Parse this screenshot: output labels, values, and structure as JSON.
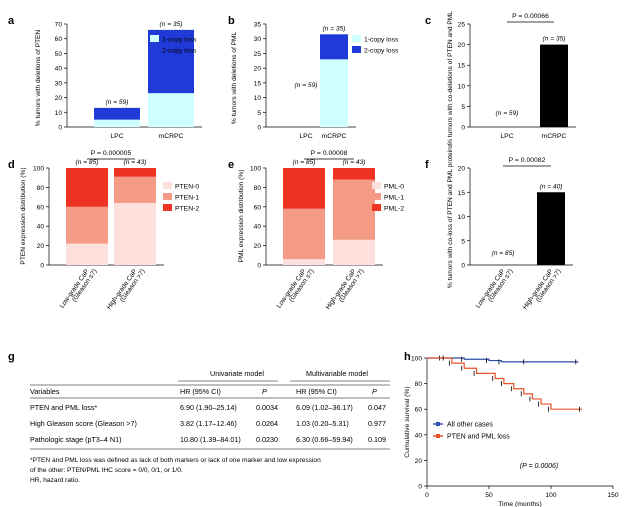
{
  "panels": [
    {
      "letter": "a"
    },
    {
      "letter": "b"
    },
    {
      "letter": "c"
    },
    {
      "letter": "d"
    },
    {
      "letter": "e"
    },
    {
      "letter": "f"
    },
    {
      "letter": "g"
    },
    {
      "letter": "h"
    }
  ],
  "chart_data": [
    {
      "id": "a",
      "type": "bar",
      "stacked": true,
      "categories": [
        "LPC",
        "mCRPC"
      ],
      "ylabel": "% tumors with deletions of PTEN",
      "ylim": [
        0,
        70
      ],
      "yticks": [
        0,
        10,
        20,
        30,
        40,
        50,
        60,
        70
      ],
      "series": [
        {
          "name": "1-copy loss",
          "color": "#cfffff",
          "values": [
            5,
            23
          ]
        },
        {
          "name": "2-copy loss",
          "color": "#1f3ad6",
          "values": [
            8,
            43
          ]
        }
      ],
      "ns": [
        "(n = 59)",
        "(n = 35)"
      ],
      "legend": "top-right"
    },
    {
      "id": "b",
      "type": "bar",
      "stacked": true,
      "categories": [
        "LPC",
        "mCRPC"
      ],
      "ylabel": "% tumors with deletions of PML",
      "ylim": [
        0,
        35
      ],
      "yticks": [
        0,
        5,
        10,
        15,
        20,
        25,
        30,
        35
      ],
      "series": [
        {
          "name": "1-copy loss",
          "color": "#cfffff",
          "values": [
            0,
            23
          ]
        },
        {
          "name": "2-copy loss",
          "color": "#1f3ad6",
          "values": [
            0,
            8.5
          ]
        }
      ],
      "ns": [
        "(n = 59)",
        "(n = 35)"
      ],
      "legend": "top-right"
    },
    {
      "id": "c",
      "type": "bar",
      "categories": [
        "LPC",
        "mCRPC"
      ],
      "ylabel": "% tumors with co-deletions of PTEN and PML",
      "ylim": [
        0,
        25
      ],
      "yticks": [
        0,
        5,
        10,
        15,
        20,
        25
      ],
      "values": [
        0,
        20
      ],
      "color": "#000000",
      "ns": [
        "(n = 59)",
        "(n = 35)"
      ],
      "pvalue": "P = 0.00066"
    },
    {
      "id": "d",
      "type": "bar",
      "stacked": true,
      "categories": [
        "Low-grade CaP (Gleason ≤7)",
        "High-grade CaP (Gleason >7)"
      ],
      "ylabel": "PTEN expression distribution (%)",
      "ylim": [
        0,
        100
      ],
      "yticks": [
        0,
        20,
        40,
        60,
        80,
        100
      ],
      "series": [
        {
          "name": "PTEN-0",
          "color": "#fde0dc",
          "values": [
            22,
            64
          ]
        },
        {
          "name": "PTEN-1",
          "color": "#f59a85",
          "values": [
            38,
            27
          ]
        },
        {
          "name": "PTEN-2",
          "color": "#ee3322",
          "values": [
            40,
            9
          ]
        }
      ],
      "ns": [
        "(n = 85)",
        "(n = 43)"
      ],
      "pvalue": "P = 0.000005",
      "legend": "top-right"
    },
    {
      "id": "e",
      "type": "bar",
      "stacked": true,
      "categories": [
        "Low-grade CaP (Gleason ≤7)",
        "High-grade CaP (Gleason >7)"
      ],
      "ylabel": "PML expression distribution (%)",
      "ylim": [
        0,
        100
      ],
      "yticks": [
        0,
        20,
        40,
        60,
        80,
        100
      ],
      "series": [
        {
          "name": "PML-0",
          "color": "#fde0dc",
          "values": [
            6,
            26
          ]
        },
        {
          "name": "PML-1",
          "color": "#f59a85",
          "values": [
            52,
            62
          ]
        },
        {
          "name": "PML-2",
          "color": "#ee3322",
          "values": [
            42,
            12
          ]
        }
      ],
      "ns": [
        "(n = 85)",
        "(n = 43)"
      ],
      "pvalue": "P = 0.00008",
      "legend": "top-right"
    },
    {
      "id": "f",
      "type": "bar",
      "categories": [
        "Low-grade CaP (Gleason ≤7)",
        "High-grade CaP (Gleason >7)"
      ],
      "ylabel": "% tumors with co-loss of PTEN and PML proteins",
      "ylim": [
        0,
        20
      ],
      "yticks": [
        0,
        5,
        10,
        15,
        20
      ],
      "values": [
        0,
        15
      ],
      "color": "#000000",
      "ns": [
        "(n = 85)",
        "(n = 40)"
      ],
      "pvalue": "P = 0.00082"
    },
    {
      "id": "h",
      "type": "line",
      "subtype": "kaplan-meier",
      "xlabel": "Time (months)",
      "ylabel": "Cumulative survival (%)",
      "xlim": [
        0,
        150
      ],
      "ylim": [
        0,
        100
      ],
      "xticks": [
        0,
        50,
        100,
        150
      ],
      "yticks": [
        0,
        20,
        40,
        60,
        80,
        100
      ],
      "series": [
        {
          "name": "All other cases",
          "color": "#2a4fa8",
          "x": [
            0,
            12,
            30,
            50,
            60,
            80,
            122
          ],
          "y": [
            100,
            100,
            99,
            98,
            97,
            97,
            97
          ]
        },
        {
          "name": "PTEN and PML loss",
          "color": "#e8542a",
          "x": [
            0,
            15,
            20,
            30,
            40,
            55,
            62,
            70,
            78,
            85,
            92,
            100,
            125
          ],
          "y": [
            100,
            100,
            96,
            92,
            88,
            84,
            80,
            76,
            72,
            68,
            64,
            60,
            60
          ]
        }
      ],
      "annotation": "(P = 0.0006)",
      "legend": "bottom-left"
    }
  ],
  "table": {
    "group_univariate": "Univariate model",
    "group_multivariable": "Multivariable model",
    "col_variables": "Variables",
    "col_hr1": "HR (95% CI)",
    "col_p1": "P",
    "col_hr2": "HR (95% CI)",
    "col_p2": "P",
    "rows": [
      {
        "variable": "PTEN and PML loss*",
        "hr1": "6.90 (1.90–25.14)",
        "p1": "0.0034",
        "hr2": "6.09 (1.02–36.17)",
        "p2": "0.047"
      },
      {
        "variable": "High Gleason score (Gleason >7)",
        "hr1": "3.82 (1.17–12.46)",
        "p1": "0.0264",
        "hr2": "1.03 (0.20–5.31)",
        "p2": "0.977"
      },
      {
        "variable": "Pathologic stage (pT3–4 N1)",
        "hr1": "10.80 (1.39–84.01)",
        "p1": "0.0230",
        "hr2": "6.30 (0.66–59.94)",
        "p2": "0.109"
      }
    ],
    "footnote_1": "*PTEN and PML loss was defined as lack of both markers or lack of one marker and low expression",
    "footnote_2": "of the other: PTEN/PML IHC score = 0/0, 0/1, or 1/0.",
    "footnote_3": "HR, hazard ratio."
  }
}
